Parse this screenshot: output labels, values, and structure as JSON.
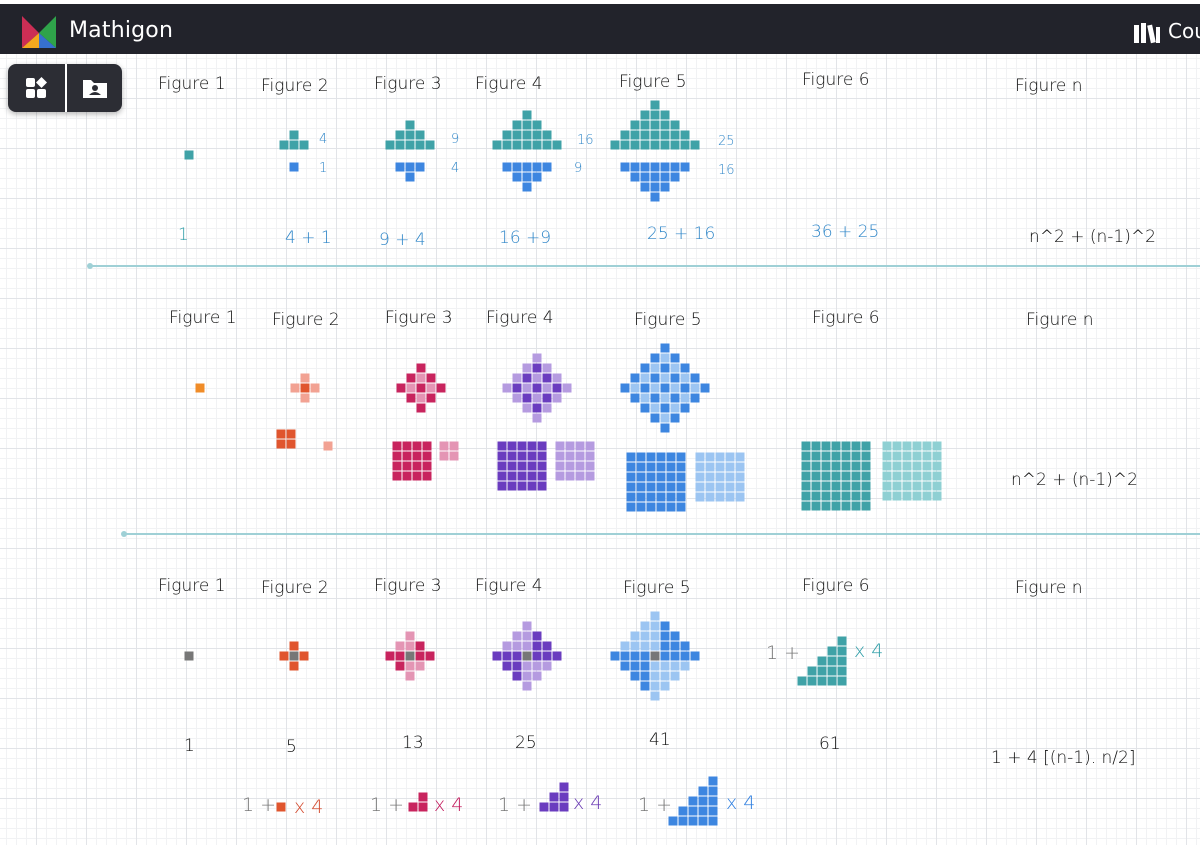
{
  "app": {
    "title": "Mathigon",
    "nav_courses": "Cou"
  },
  "toolbar": {
    "buttons": [
      {
        "icon": "shapes-icon"
      },
      {
        "icon": "folder-user-icon"
      }
    ]
  },
  "colors": {
    "teal": "#3fa2a7",
    "teal_light": "#8fd0d3",
    "blue": "#3d86e0",
    "blue_light": "#9cc5f2",
    "orange": "#f08c28",
    "red": "#e0552e",
    "red_light": "#f2a293",
    "magenta": "#c8245e",
    "magenta_light": "#e495b4",
    "purple": "#6a3cbf",
    "purple_light": "#b59be0",
    "gray": "#777777"
  },
  "row1": {
    "figures": [
      "Figure 1",
      "Figure 2",
      "Figure 3",
      "Figure 4",
      "Figure 5",
      "Figure 6",
      "Figure n"
    ],
    "side_labels": [
      "4",
      "1",
      "9",
      "4",
      "16",
      "9",
      "25",
      "16"
    ],
    "sums": [
      "1",
      "4 + 1",
      "9 + 4",
      "16  +9",
      "25 + 16",
      "36 + 25"
    ],
    "formula": "n^2 + (n-1)^2"
  },
  "row2": {
    "figures": [
      "Figure 1",
      "Figure 2",
      "Figure 3",
      "Figure 4",
      "Figure 5",
      "Figure 6",
      "Figure n"
    ],
    "formula": "n^2 + (n-1)^2"
  },
  "row3": {
    "figures": [
      "Figure 1",
      "Figure 2",
      "Figure 3",
      "Figure 4",
      "Figure 5",
      "Figure 6",
      "Figure n"
    ],
    "counts": [
      "1",
      "5",
      "13",
      "25",
      "41",
      "61"
    ],
    "formula": "1 + 4 [(n-1). n/2]",
    "fig6_prefix": "1 +",
    "fig6_suffix": "x 4",
    "bottom": [
      {
        "prefix": "1 +",
        "suffix": "x 4"
      },
      {
        "prefix": "1 +",
        "suffix": "x 4"
      },
      {
        "prefix": "1 +",
        "suffix": "x 4"
      },
      {
        "prefix": "1 +",
        "suffix": "x 4"
      }
    ]
  }
}
